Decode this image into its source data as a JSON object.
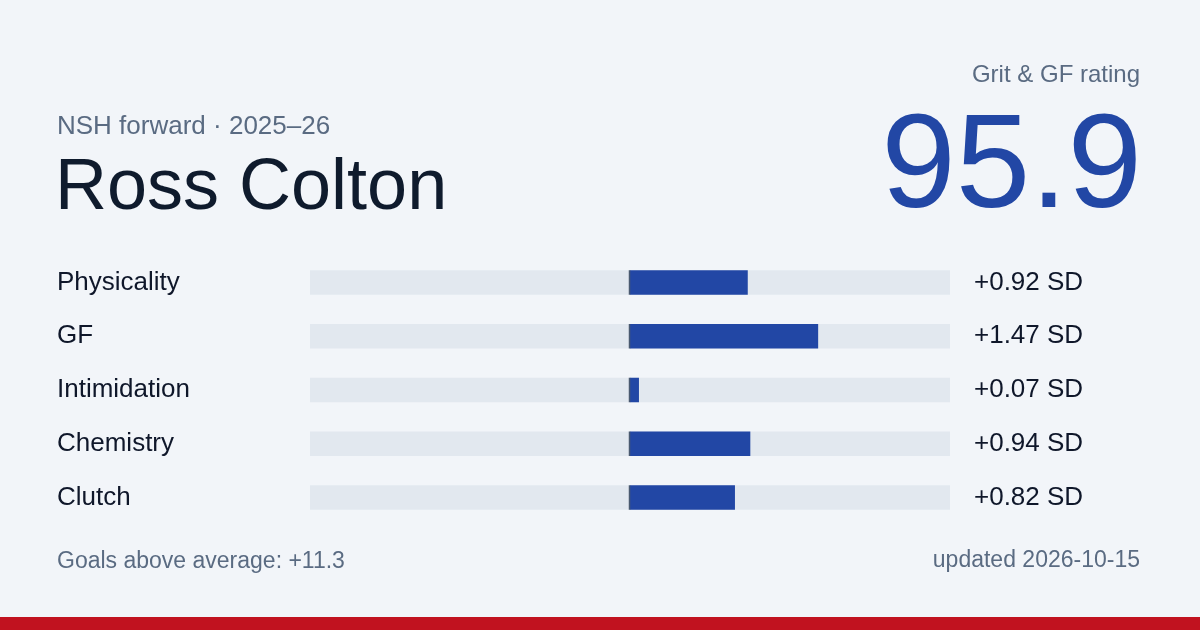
{
  "chart_data": {
    "type": "bar",
    "orientation": "horizontal",
    "title": "Ross Colton",
    "subtitle": "NSH forward · 2025–26",
    "categories": [
      "Physicality",
      "GF",
      "Intimidation",
      "Chemistry",
      "Clutch"
    ],
    "values": [
      0.92,
      1.47,
      0.07,
      0.94,
      0.82
    ],
    "color": "#2247a5",
    "value_labels": [
      "+0.92 SD",
      "+1.47 SD",
      "+0.07 SD",
      "+0.94 SD",
      "+0.82 SD"
    ],
    "xlim": [
      -2.5,
      2.5
    ],
    "tick_labels": "y",
    "ref_lines": [
      {
        "axis": "x",
        "value": 0,
        "color": "#4a5a70"
      }
    ],
    "annotations": [
      "Grit & GF rating",
      "95.9",
      "Goals above average: +11.3",
      "updated 2026-10-15"
    ]
  }
}
